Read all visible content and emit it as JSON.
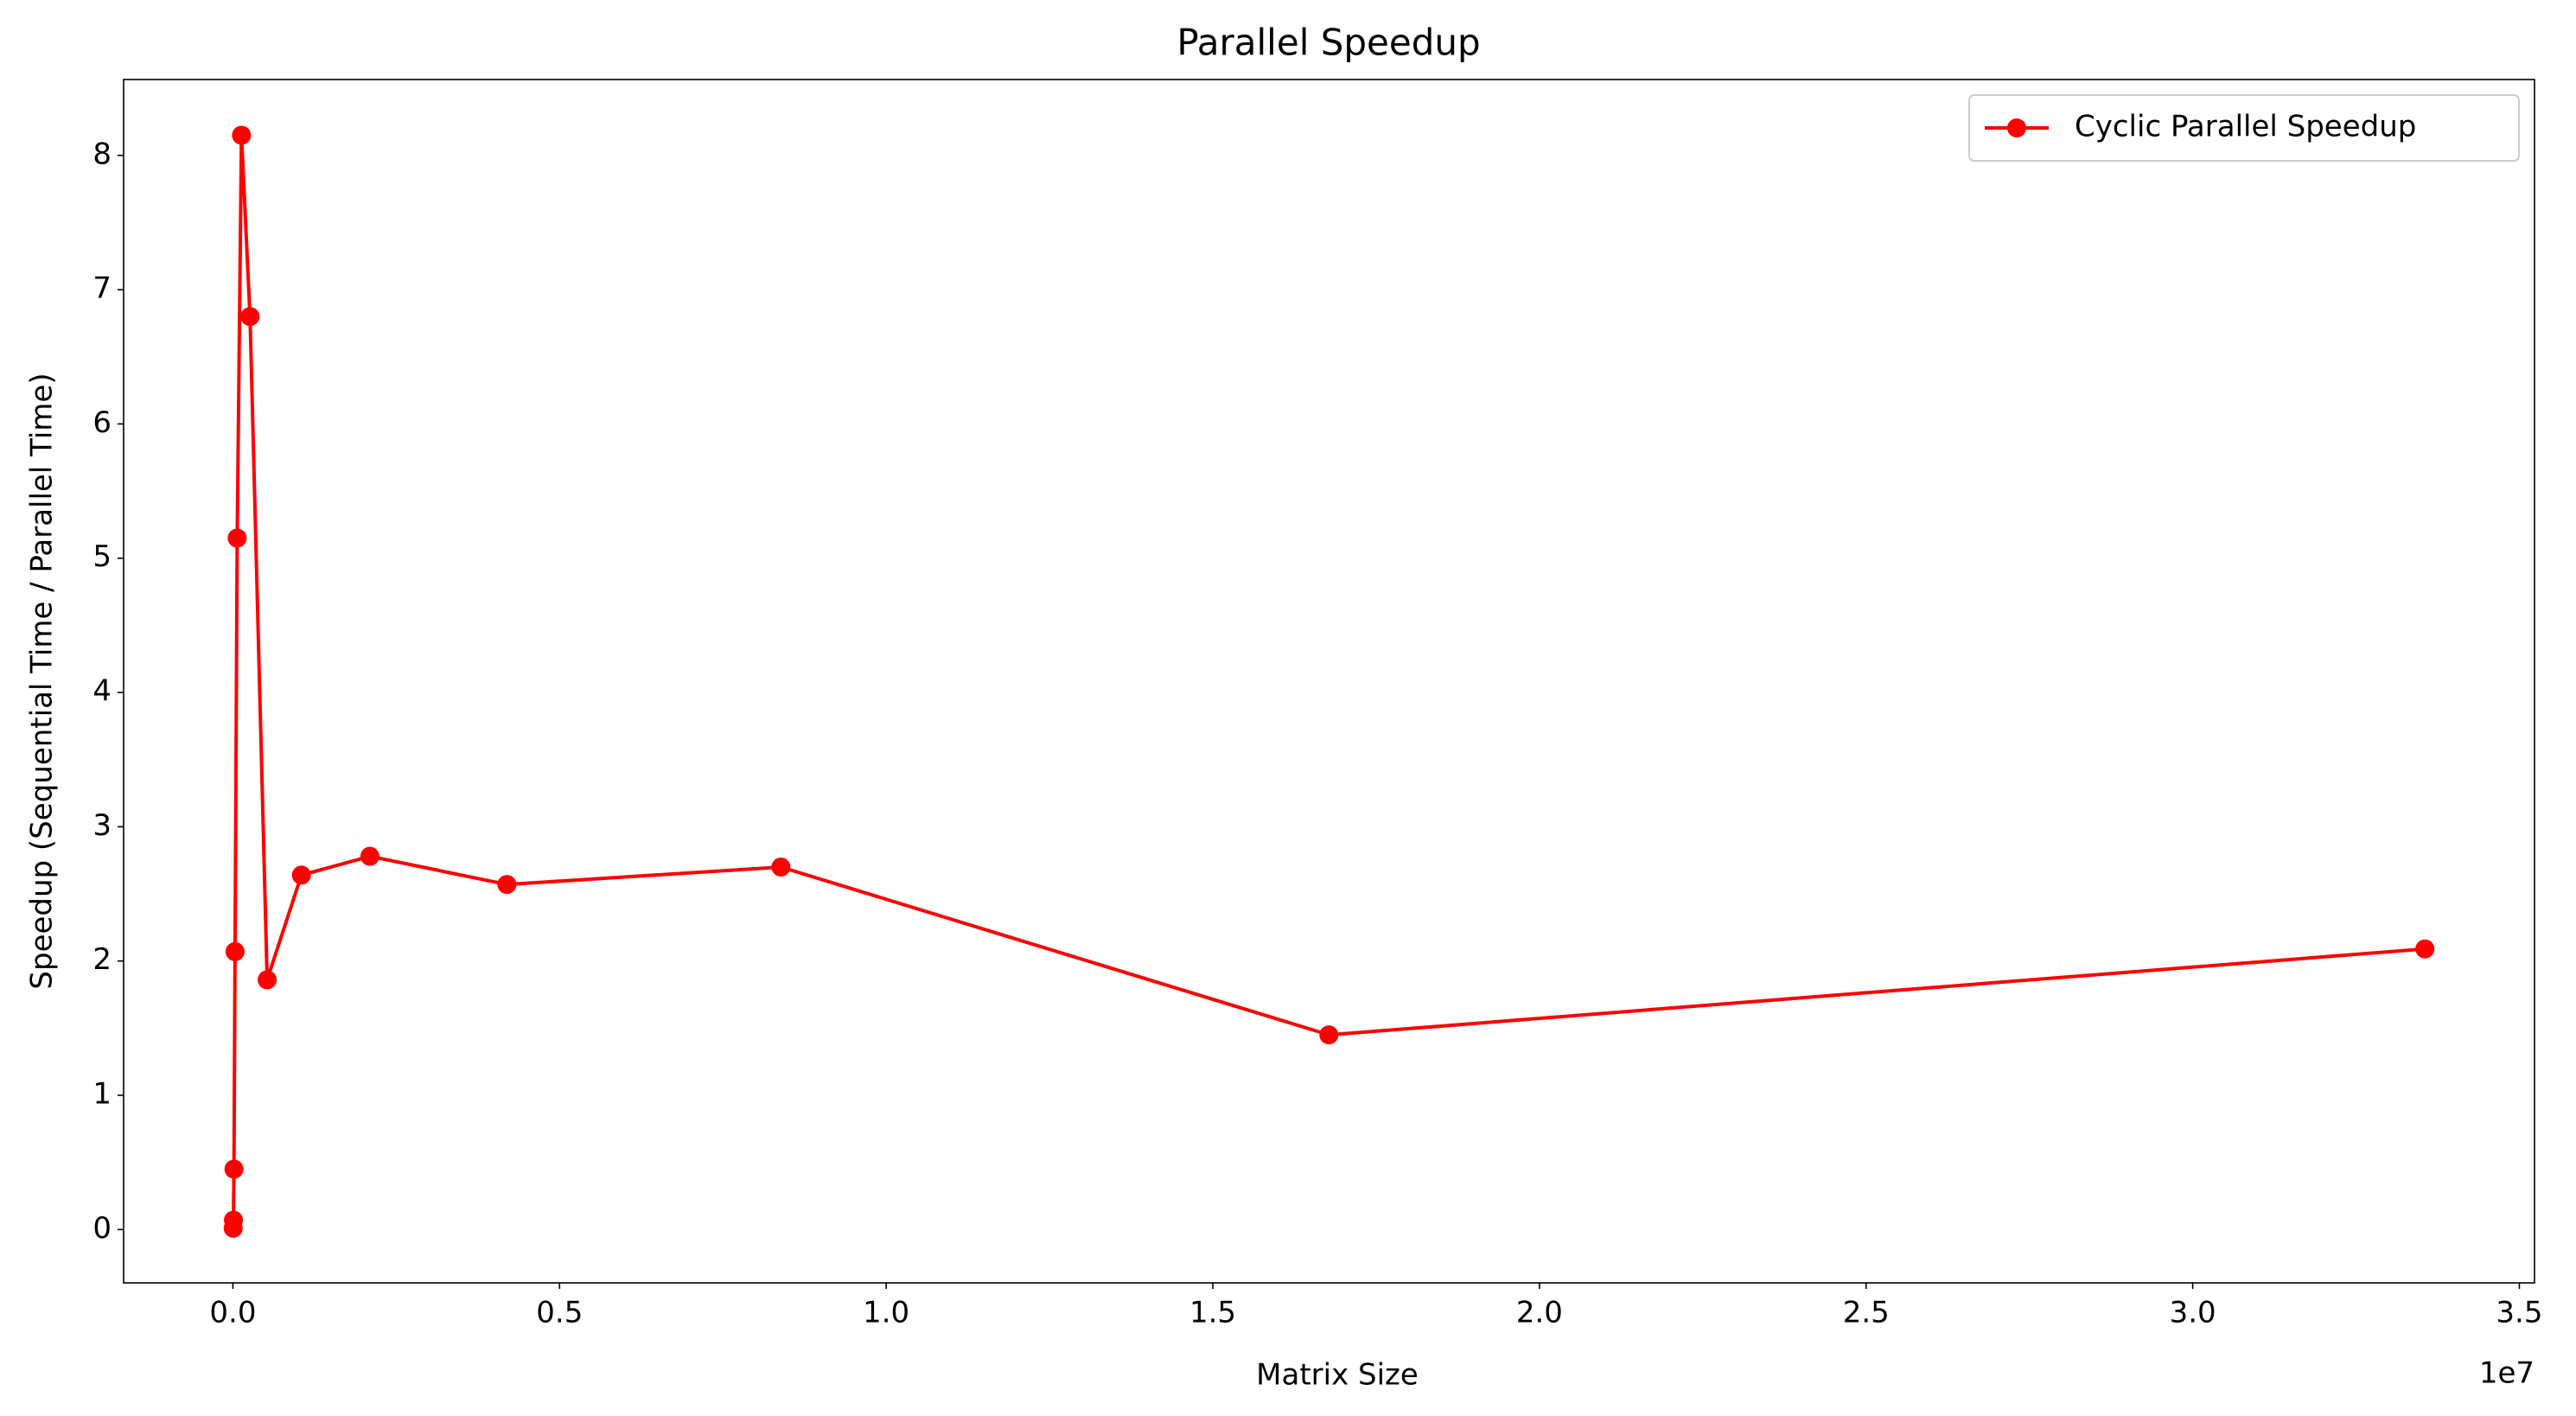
{
  "chart_data": {
    "type": "line",
    "title": "Parallel Speedup",
    "x_label": "Matrix Size",
    "y_label": "Speedup (Sequential Time / Parallel Time)",
    "x_offset_label": "1e7",
    "x": [
      4096,
      8192,
      16384,
      32768,
      65536,
      131072,
      262144,
      524288,
      1048576,
      2097152,
      4194304,
      8388608,
      16777216,
      33554432
    ],
    "series": [
      {
        "name": "Cyclic Parallel Speedup",
        "color": "#ff0000",
        "values": [
          0.01,
          0.07,
          0.45,
          2.07,
          5.15,
          8.15,
          6.8,
          1.86,
          2.64,
          2.78,
          2.57,
          2.7,
          1.45,
          2.09
        ]
      }
    ],
    "xlim": [
      -1673000,
      35232000
    ],
    "xticks": [
      {
        "value": 0,
        "label": "0.0"
      },
      {
        "value": 5000000,
        "label": "0.5"
      },
      {
        "value": 10000000,
        "label": "1.0"
      },
      {
        "value": 15000000,
        "label": "1.5"
      },
      {
        "value": 20000000,
        "label": "2.0"
      },
      {
        "value": 25000000,
        "label": "2.5"
      },
      {
        "value": 30000000,
        "label": "3.0"
      },
      {
        "value": 35000000,
        "label": "3.5"
      }
    ],
    "ylim": [
      -0.397,
      8.565
    ],
    "yticks": [
      0,
      1,
      2,
      3,
      4,
      5,
      6,
      7,
      8
    ],
    "grid": false,
    "legend": "upper right"
  }
}
